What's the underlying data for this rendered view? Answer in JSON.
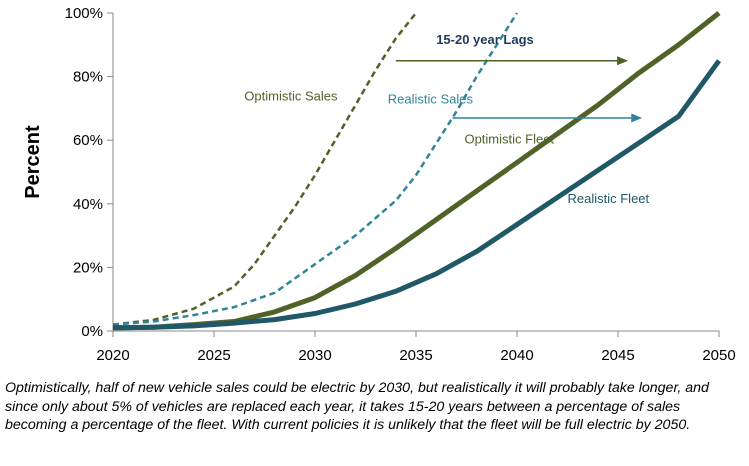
{
  "chart_data": {
    "type": "line",
    "title": "",
    "xlabel": "",
    "ylabel": "Percent",
    "xlim": [
      2020,
      2050
    ],
    "ylim": [
      0,
      100
    ],
    "x_ticks": [
      "2020",
      "2025",
      "2030",
      "2035",
      "2040",
      "2045",
      "2050"
    ],
    "y_ticks": [
      "0%",
      "20%",
      "40%",
      "60%",
      "80%",
      "100%"
    ],
    "colors": {
      "optimistic": "#4f6228",
      "realistic_sales": "#31849b",
      "realistic_fleet": "#215868",
      "arrow": "#4f6228",
      "arrow2": "#31849b",
      "lag_text": "#1f3a5a"
    },
    "series": [
      {
        "name": "Optimistic Sales",
        "style": "dashed",
        "x": [
          2020,
          2022,
          2024,
          2026,
          2027,
          2028,
          2029,
          2030,
          2031,
          2032,
          2033,
          2034,
          2035
        ],
        "y": [
          2,
          3.5,
          7,
          14,
          21,
          30,
          39,
          49,
          60,
          71,
          82,
          92,
          100
        ]
      },
      {
        "name": "Realistic Sales",
        "style": "dashed",
        "x": [
          2020,
          2022,
          2024,
          2026,
          2028,
          2030,
          2032,
          2034,
          2035,
          2036,
          2037,
          2038,
          2039,
          2040
        ],
        "y": [
          2,
          3,
          5,
          7.5,
          12,
          21,
          30,
          41,
          49,
          59,
          69,
          80,
          90,
          100
        ]
      },
      {
        "name": "Optimistic Fleet",
        "style": "solid",
        "x": [
          2020,
          2022,
          2024,
          2026,
          2028,
          2030,
          2032,
          2034,
          2036,
          2038,
          2040,
          2042,
          2044,
          2046,
          2048,
          2050
        ],
        "y": [
          1,
          1.2,
          2,
          3,
          6,
          10.5,
          17.5,
          26,
          35,
          44,
          53,
          62,
          71,
          81,
          90,
          100
        ]
      },
      {
        "name": "Realistic Fleet",
        "style": "solid",
        "x": [
          2020,
          2022,
          2024,
          2026,
          2028,
          2030,
          2032,
          2034,
          2036,
          2038,
          2040,
          2042,
          2044,
          2046,
          2048,
          2050
        ],
        "y": [
          1,
          1.2,
          1.6,
          2.5,
          3.6,
          5.5,
          8.5,
          12.5,
          18,
          25,
          33.5,
          42,
          50.5,
          59,
          67.5,
          85
        ]
      }
    ],
    "annotations": [
      {
        "text": "Optimistic Sales",
        "x": 2026.5,
        "y": 72.5,
        "color": "#4f6228"
      },
      {
        "text": "Realistic Sales",
        "x": 2033.6,
        "y": 71.5,
        "color": "#31849b"
      },
      {
        "text": "Optimistic Fleet",
        "x": 2037.4,
        "y": 59,
        "color": "#4f6228"
      },
      {
        "text": "Realistic Fleet",
        "x": 2042.5,
        "y": 40.3,
        "color": "#215868"
      }
    ],
    "lag_label": "15-20 year Lags",
    "arrows": [
      {
        "x_from": 2034,
        "x_to": 2045.5,
        "y": 85,
        "color": "#4f6228"
      },
      {
        "x_from": 2036.8,
        "x_to": 2046.2,
        "y": 67,
        "color": "#31849b"
      }
    ]
  },
  "caption": "Optimistically, half of new vehicle sales could be electric by 2030, but realistically it will probably take longer, and since only about 5% of vehicles are replaced each year, it takes 15-20 years between a percentage of sales becoming a percentage of the fleet. With current policies it is unlikely that the fleet will be full electric by 2050."
}
